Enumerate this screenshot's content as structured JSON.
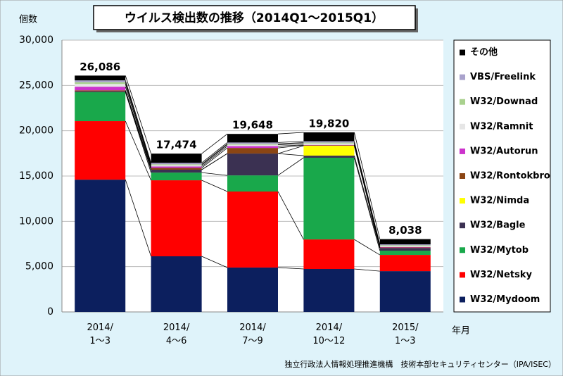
{
  "chart_data": {
    "type": "stacked_bar",
    "title": "ウイルス検出数の推移（2014Q1～2015Q1）",
    "y_label": "個数",
    "x_label": "年月",
    "footer": "独立行政法人情報処理推進機構　技術本部セキュリティセンター（IPA/ISEC）",
    "categories": [
      "2014/\n1～3",
      "2014/\n4～6",
      "2014/\n7～9",
      "2014/\n10～12",
      "2015/\n1～3"
    ],
    "series": [
      {
        "name": "W32/Mydoom",
        "color": "#0c1f5e",
        "values": [
          14600,
          6140,
          4900,
          4740,
          4500
        ]
      },
      {
        "name": "W32/Netsky",
        "color": "#ff0000",
        "values": [
          6460,
          8390,
          8390,
          3260,
          1790
        ]
      },
      {
        "name": "W32/Mytob",
        "color": "#19a84b",
        "values": [
          3200,
          850,
          1780,
          9020,
          470
        ]
      },
      {
        "name": "W32/Bagle",
        "color": "#3b3152",
        "values": [
          100,
          320,
          2410,
          230,
          300
        ]
      },
      {
        "name": "W32/Nimda",
        "color": "#ffff00",
        "values": [
          0,
          0,
          0,
          1090,
          0
        ]
      },
      {
        "name": "W32/Rontokbro",
        "color": "#8b4513",
        "values": [
          100,
          200,
          620,
          50,
          50
        ]
      },
      {
        "name": "W32/Autorun",
        "color": "#cc33cc",
        "values": [
          400,
          150,
          200,
          50,
          50
        ]
      },
      {
        "name": "W32/Ramnit",
        "color": "#e6e6e6",
        "values": [
          300,
          150,
          150,
          150,
          100
        ]
      },
      {
        "name": "W32/Downad",
        "color": "#a9d18e",
        "values": [
          200,
          100,
          100,
          100,
          100
        ]
      },
      {
        "name": "VBS/Freelink",
        "color": "#a9a2cc",
        "values": [
          200,
          150,
          150,
          150,
          100
        ]
      },
      {
        "name": "その他",
        "color": "#000000",
        "values": [
          526,
          1024,
          948,
          980,
          578
        ]
      }
    ],
    "totals": [
      26086,
      17474,
      19648,
      19820,
      8038
    ],
    "total_labels": [
      "26,086",
      "17,474",
      "19,648",
      "19,820",
      "8,038"
    ],
    "ylim": [
      0,
      30000
    ],
    "yticks": [
      0,
      {
        "value": 5000,
        "label": "5,000"
      },
      {
        "value": 10000,
        "label": "10,000"
      },
      {
        "value": 15000,
        "label": "15,000"
      },
      {
        "value": 20000,
        "label": "20,000"
      },
      {
        "value": 25000,
        "label": "25,000"
      },
      {
        "value": 30000,
        "label": "30,000"
      }
    ],
    "grid": true
  }
}
